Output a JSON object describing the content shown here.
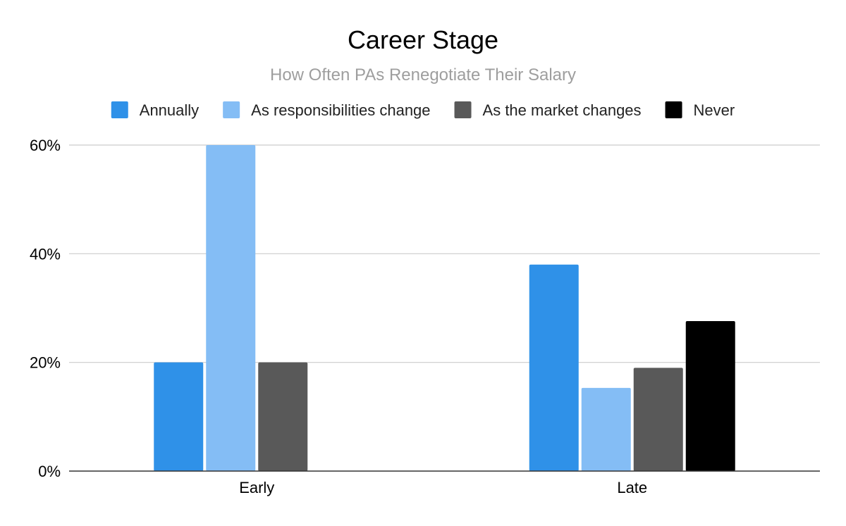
{
  "chart_data": {
    "type": "bar",
    "title": "Career Stage",
    "subtitle": "How Often PAs Renegotiate Their Salary",
    "xlabel": "",
    "ylabel": "",
    "categories": [
      "Early",
      "Late"
    ],
    "series": [
      {
        "name": "Annually",
        "color": "#2f91e8",
        "values": [
          20.0,
          38.0
        ]
      },
      {
        "name": "As responsibilities change",
        "color": "#84bdf5",
        "values": [
          60.0,
          15.3
        ]
      },
      {
        "name": "As the market changes",
        "color": "#595959",
        "values": [
          20.0,
          19.0
        ]
      },
      {
        "name": "Never",
        "color": "#000000",
        "values": [
          null,
          27.6
        ]
      }
    ],
    "ylim": [
      0,
      60
    ],
    "yticks": [
      0,
      20,
      40,
      60
    ],
    "ytick_labels": [
      "0%",
      "20%",
      "40%",
      "60%"
    ],
    "grid": true,
    "legend_position": "top"
  }
}
